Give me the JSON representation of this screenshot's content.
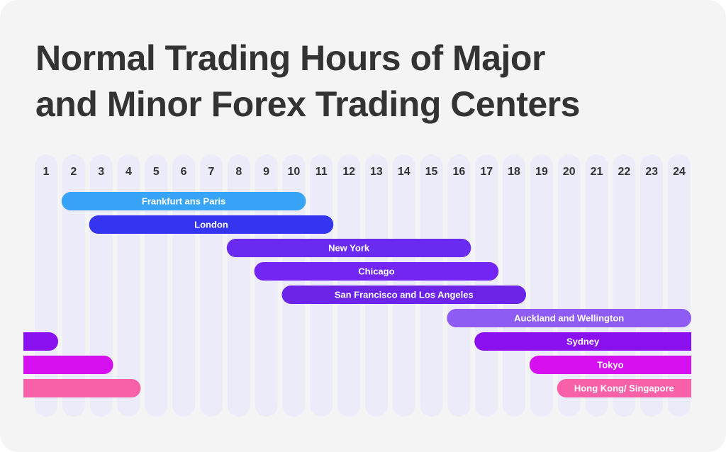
{
  "chart_data": {
    "type": "gantt",
    "title": "Normal Trading Hours of Major\nand Minor Forex Trading Centers",
    "categories": [
      1,
      2,
      3,
      4,
      5,
      6,
      7,
      8,
      9,
      10,
      11,
      12,
      13,
      14,
      15,
      16,
      17,
      18,
      19,
      20,
      21,
      22,
      23,
      24
    ],
    "series": [
      {
        "name": "Frankfurt ans Paris",
        "color": "#38a4f7",
        "start": 2,
        "end": 10
      },
      {
        "name": "London",
        "color": "#3535ef",
        "start": 3,
        "end": 11
      },
      {
        "name": "New York",
        "color": "#6a2bf0",
        "start": 8,
        "end": 16
      },
      {
        "name": "Chicago",
        "color": "#7325f3",
        "start": 9,
        "end": 17
      },
      {
        "name": "San Francisco and Los Angeles",
        "color": "#6c25e8",
        "start": 10,
        "end": 18
      },
      {
        "name": "Auckland and Wellington",
        "color": "#8f5bf5",
        "start": 16,
        "end": 24
      },
      {
        "name": "Sydney",
        "color": "#8b10ef",
        "start": 17,
        "end": 1
      },
      {
        "name": "Tokyo",
        "color": "#d60ff0",
        "start": 19,
        "end": 3
      },
      {
        "name": "Hong Kong/ Singapore",
        "color": "#f860a8",
        "start": 20,
        "end": 4
      }
    ]
  }
}
